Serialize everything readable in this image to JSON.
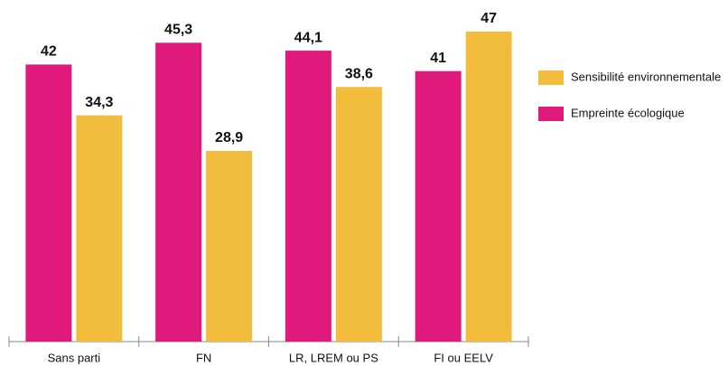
{
  "chart_data": {
    "type": "bar",
    "categories": [
      "Sans parti",
      "FN",
      "LR, LREM ou PS",
      "FI ou EELV"
    ],
    "series": [
      {
        "name": "Empreinte écologique",
        "color": "#e0197d",
        "values": [
          42,
          45.3,
          44.1,
          41
        ],
        "value_labels": [
          "42",
          "45,3",
          "44,1",
          "41"
        ]
      },
      {
        "name": "Sensibilité environnementale",
        "color": "#f2bd3c",
        "values": [
          34.3,
          28.9,
          38.6,
          47
        ],
        "value_labels": [
          "34,3",
          "28,9",
          "38,6",
          "47"
        ]
      }
    ],
    "ylim": [
      0,
      50
    ]
  }
}
